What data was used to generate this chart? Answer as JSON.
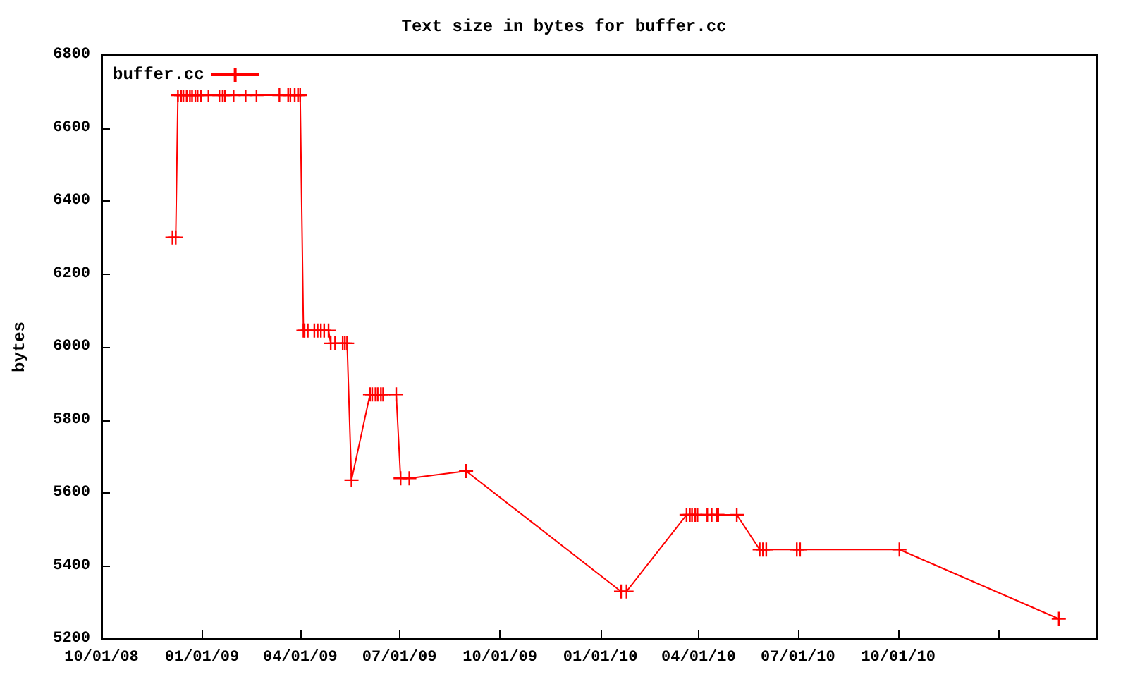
{
  "chart_data": {
    "type": "line",
    "title": "Text size in bytes for buffer.cc",
    "ylabel": "bytes",
    "xlim": [
      "2008-10-01",
      "2011-04-01"
    ],
    "xticks": [
      {
        "value": "2008-10-01",
        "label": "10/01/08"
      },
      {
        "value": "2009-01-01",
        "label": "01/01/09"
      },
      {
        "value": "2009-04-01",
        "label": "04/01/09"
      },
      {
        "value": "2009-07-01",
        "label": "07/01/09"
      },
      {
        "value": "2009-10-01",
        "label": "10/01/09"
      },
      {
        "value": "2010-01-01",
        "label": "01/01/10"
      },
      {
        "value": "2010-04-01",
        "label": "04/01/10"
      },
      {
        "value": "2010-07-01",
        "label": "07/01/10"
      },
      {
        "value": "2010-10-01",
        "label": "10/01/10"
      },
      {
        "value": "2011-01-01",
        "label": null
      }
    ],
    "ylim": [
      5200,
      6800
    ],
    "yticks": [
      5200,
      5400,
      5600,
      5800,
      6000,
      6200,
      6400,
      6600,
      6800
    ],
    "grid": false,
    "legend": "top left",
    "marker": "cross",
    "line_style": "solid",
    "x": [
      "2008-12-05",
      "2008-12-08",
      "2008-12-10",
      "2008-12-13",
      "2008-12-15",
      "2008-12-18",
      "2008-12-21",
      "2008-12-23",
      "2008-12-26",
      "2008-12-28",
      "2008-12-31",
      "2009-01-07",
      "2009-01-17",
      "2009-01-20",
      "2009-01-22",
      "2009-01-30",
      "2009-02-10",
      "2009-02-20",
      "2009-03-13",
      "2009-03-21",
      "2009-03-23",
      "2009-03-27",
      "2009-03-30",
      "2009-04-01",
      "2009-04-04",
      "2009-04-05",
      "2009-04-08",
      "2009-04-14",
      "2009-04-17",
      "2009-04-20",
      "2009-04-23",
      "2009-04-27",
      "2009-04-29",
      "2009-05-03",
      "2009-05-10",
      "2009-05-12",
      "2009-05-14",
      "2009-05-18",
      "2009-06-04",
      "2009-06-06",
      "2009-06-09",
      "2009-06-11",
      "2009-06-14",
      "2009-06-16",
      "2009-06-28",
      "2009-07-02",
      "2009-07-10",
      "2009-08-31",
      "2010-01-20",
      "2010-01-25",
      "2010-03-21",
      "2010-03-24",
      "2010-03-26",
      "2010-03-29",
      "2010-03-31",
      "2010-04-09",
      "2010-04-13",
      "2010-04-18",
      "2010-04-19",
      "2010-05-06",
      "2010-05-27",
      "2010-05-30",
      "2010-06-02",
      "2010-06-30",
      "2010-07-03",
      "2010-10-02",
      "2011-02-25"
    ],
    "series": [
      {
        "name": "buffer.cc",
        "color": "#ff0000",
        "values": [
          6300,
          6300,
          6690,
          6690,
          6690,
          6690,
          6690,
          6690,
          6690,
          6690,
          6690,
          6690,
          6690,
          6690,
          6690,
          6690,
          6690,
          6690,
          6690,
          6690,
          6690,
          6690,
          6690,
          6690,
          6045,
          6045,
          6045,
          6045,
          6045,
          6045,
          6045,
          6045,
          6010,
          6010,
          6010,
          6010,
          6010,
          5635,
          5870,
          5870,
          5870,
          5870,
          5870,
          5870,
          5870,
          5640,
          5640,
          5660,
          5330,
          5330,
          5540,
          5540,
          5540,
          5540,
          5540,
          5540,
          5540,
          5540,
          5540,
          5540,
          5445,
          5445,
          5445,
          5445,
          5445,
          5445,
          5255
        ]
      }
    ]
  }
}
